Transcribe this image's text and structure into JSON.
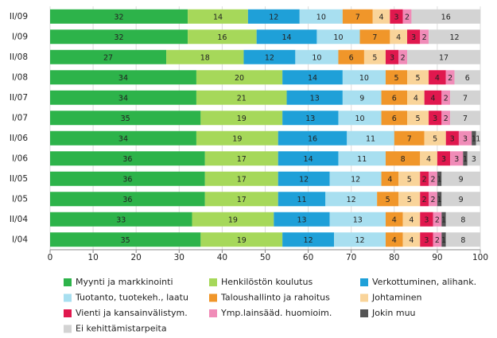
{
  "chart_data": {
    "type": "stacked-bar-horizontal",
    "categories": [
      "II/09",
      "I/09",
      "II/08",
      "I/08",
      "II/07",
      "I/07",
      "II/06",
      "I/06",
      "II/05",
      "I/05",
      "II/04",
      "I/04"
    ],
    "series": [
      {
        "name": "Myynti ja markkinointi",
        "color": "#2db34a",
        "values": [
          32,
          32,
          27,
          34,
          34,
          35,
          34,
          36,
          36,
          36,
          33,
          35
        ]
      },
      {
        "name": "Henkilöstön koulutus",
        "color": "#a6d85a",
        "values": [
          14,
          16,
          18,
          20,
          21,
          19,
          19,
          17,
          17,
          17,
          19,
          19
        ]
      },
      {
        "name": "Verkottuminen, alihank.",
        "color": "#1fa0d8",
        "values": [
          12,
          14,
          12,
          14,
          13,
          13,
          16,
          14,
          12,
          11,
          13,
          12
        ]
      },
      {
        "name": "Tuotanto, tuotekeh., laatu",
        "color": "#a8dff0",
        "values": [
          10,
          10,
          10,
          10,
          9,
          10,
          11,
          11,
          12,
          12,
          13,
          12
        ]
      },
      {
        "name": "Taloushallinto ja rahoitus",
        "color": "#f0962a",
        "values": [
          7,
          7,
          6,
          5,
          6,
          6,
          7,
          8,
          4,
          5,
          4,
          4
        ]
      },
      {
        "name": "Johtaminen",
        "color": "#f9d49a",
        "values": [
          4,
          4,
          5,
          5,
          4,
          5,
          5,
          4,
          5,
          5,
          4,
          4
        ]
      },
      {
        "name": "Vienti ja kansainvälistym.",
        "color": "#e0184e",
        "values": [
          3,
          3,
          3,
          4,
          4,
          3,
          3,
          3,
          2,
          2,
          3,
          3
        ]
      },
      {
        "name": "Ymp.lainsääd. huomioim.",
        "color": "#f08cb8",
        "values": [
          2,
          2,
          2,
          2,
          2,
          2,
          3,
          3,
          2,
          2,
          2,
          2
        ]
      },
      {
        "name": "Jokin muu",
        "color": "#555555",
        "values": [
          null,
          null,
          null,
          null,
          null,
          null,
          1,
          1,
          1,
          1,
          1,
          1
        ]
      },
      {
        "name": "Ei kehittämistarpeita",
        "color": "#d3d3d3",
        "values": [
          16,
          12,
          17,
          6,
          7,
          7,
          1,
          3,
          9,
          9,
          8,
          8
        ]
      }
    ],
    "xlim": [
      0,
      100
    ],
    "xticks": [
      0,
      10,
      20,
      30,
      40,
      50,
      60,
      70,
      80,
      90,
      100
    ],
    "grid": true
  }
}
